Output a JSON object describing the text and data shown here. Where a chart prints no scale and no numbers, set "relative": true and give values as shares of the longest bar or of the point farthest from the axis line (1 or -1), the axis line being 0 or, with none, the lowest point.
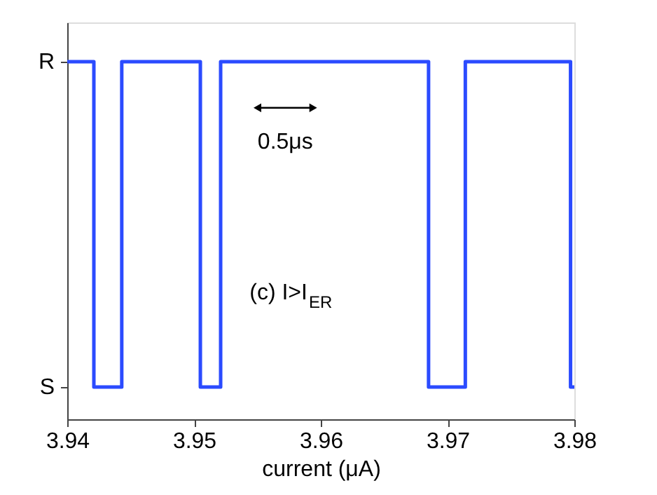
{
  "chart_data": {
    "type": "step",
    "xlabel": "current (μA)",
    "x": [
      3.94,
      3.9421,
      3.9443,
      3.9505,
      3.9521,
      3.9685,
      3.9714,
      3.9797,
      3.98
    ],
    "series": [
      {
        "color": "#2b4bff",
        "values": [
          1,
          0.09,
          1,
          0.09,
          1,
          0.09,
          1,
          0.09,
          0.09
        ]
      }
    ],
    "xlim": [
      3.94,
      3.98
    ],
    "xticks": [
      3.94,
      3.95,
      3.96,
      3.97,
      3.98
    ],
    "relative": true,
    "annotations": [
      "0.5μs",
      "(c) I>I$_{ER}$",
      "R",
      "S"
    ],
    "grid": false,
    "line_style": "solid"
  }
}
